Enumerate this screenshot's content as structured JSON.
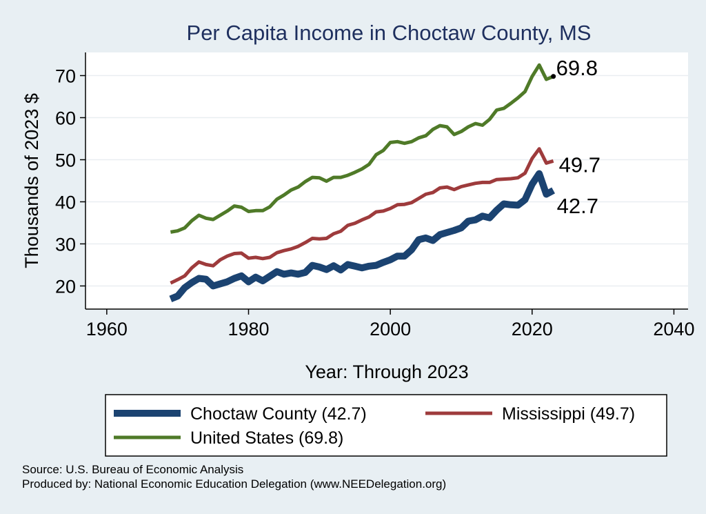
{
  "chart_data": {
    "type": "line",
    "title": "Per Capita Income in Choctaw County, MS",
    "xlabel": "Year: Through 2023",
    "ylabel": "Thousands of 2023 $",
    "xlim": [
      1957,
      2042
    ],
    "ylim": [
      14.5,
      75.5
    ],
    "x_ticks": [
      1960,
      1980,
      2000,
      2020,
      2040
    ],
    "y_ticks": [
      20,
      30,
      40,
      50,
      60,
      70
    ],
    "grid": true,
    "legend_position": "bottom",
    "x": [
      1969,
      1970,
      1971,
      1972,
      1973,
      1974,
      1975,
      1976,
      1977,
      1978,
      1979,
      1980,
      1981,
      1982,
      1983,
      1984,
      1985,
      1986,
      1987,
      1988,
      1989,
      1990,
      1991,
      1992,
      1993,
      1994,
      1995,
      1996,
      1997,
      1998,
      1999,
      2000,
      2001,
      2002,
      2003,
      2004,
      2005,
      2006,
      2007,
      2008,
      2009,
      2010,
      2011,
      2012,
      2013,
      2014,
      2015,
      2016,
      2017,
      2018,
      2019,
      2020,
      2021,
      2022,
      2023
    ],
    "series": [
      {
        "name": "United States",
        "legend_label": "United States (69.8)",
        "color": "#4f7a28",
        "line_width": 5,
        "end_label": "69.8",
        "end_marker": true,
        "values": [
          32.8,
          33.1,
          33.8,
          35.5,
          36.8,
          36.1,
          35.8,
          36.8,
          37.8,
          39.0,
          38.7,
          37.7,
          37.9,
          37.9,
          38.8,
          40.6,
          41.6,
          42.8,
          43.5,
          44.8,
          45.8,
          45.7,
          44.9,
          45.8,
          45.8,
          46.3,
          47.0,
          47.8,
          48.9,
          51.2,
          52.2,
          54.1,
          54.3,
          53.9,
          54.3,
          55.2,
          55.7,
          57.2,
          58.1,
          57.8,
          56.0,
          56.7,
          57.8,
          58.6,
          58.2,
          59.6,
          61.8,
          62.2,
          63.4,
          64.7,
          66.2,
          69.8,
          72.5,
          69.1,
          69.8
        ]
      },
      {
        "name": "Mississippi",
        "legend_label": "Mississippi (49.7)",
        "color": "#9e3b3c",
        "line_width": 5,
        "end_label": "49.7",
        "end_marker": false,
        "values": [
          20.7,
          21.5,
          22.4,
          24.3,
          25.7,
          25.1,
          24.8,
          26.2,
          27.1,
          27.7,
          27.8,
          26.6,
          26.8,
          26.5,
          26.8,
          27.9,
          28.4,
          28.8,
          29.4,
          30.3,
          31.3,
          31.2,
          31.3,
          32.4,
          33.0,
          34.4,
          34.9,
          35.7,
          36.4,
          37.6,
          37.8,
          38.4,
          39.3,
          39.4,
          39.8,
          40.8,
          41.8,
          42.2,
          43.3,
          43.5,
          42.9,
          43.6,
          44.0,
          44.4,
          44.6,
          44.6,
          45.3,
          45.4,
          45.5,
          45.7,
          46.8,
          50.3,
          52.6,
          49.2,
          49.7
        ]
      },
      {
        "name": "Choctaw County",
        "legend_label": "Choctaw County (42.7)",
        "color": "#1b4371",
        "line_width": 10,
        "end_label": "42.7",
        "end_marker": false,
        "values": [
          16.9,
          17.6,
          19.6,
          20.8,
          21.8,
          21.6,
          20.0,
          20.5,
          21.0,
          21.8,
          22.4,
          21.0,
          22.1,
          21.2,
          22.3,
          23.4,
          22.8,
          23.1,
          22.8,
          23.2,
          24.9,
          24.5,
          23.9,
          24.8,
          23.8,
          25.1,
          24.7,
          24.3,
          24.7,
          24.9,
          25.6,
          26.2,
          27.1,
          27.1,
          28.6,
          31.0,
          31.4,
          30.8,
          32.2,
          32.7,
          33.2,
          33.8,
          35.4,
          35.7,
          36.6,
          36.2,
          38.0,
          39.5,
          39.3,
          39.2,
          40.5,
          44.2,
          46.7,
          41.8,
          42.7
        ]
      }
    ],
    "legend_order": [
      "Choctaw County",
      "Mississippi",
      "United States"
    ]
  },
  "source_text": "Source: U.S. Bureau of Economic Analysis",
  "producer_text": "Produced by: National Economic Education Delegation (www.NEEDelegation.org)"
}
